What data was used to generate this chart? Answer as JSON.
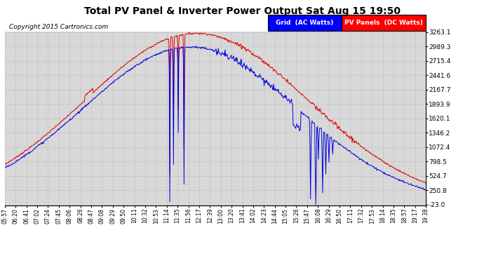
{
  "title": "Total PV Panel & Inverter Power Output Sat Aug 15 19:50",
  "copyright": "Copyright 2015 Cartronics.com",
  "legend_blue_label": "Grid  (AC Watts)",
  "legend_red_label": "PV Panels  (DC Watts)",
  "grid_color": "#bbbbbb",
  "bg_color": "#ffffff",
  "plot_bg_color": "#d8d8d8",
  "line_color_blue": "#0000dd",
  "line_color_red": "#dd0000",
  "ytick_values": [
    -23.0,
    250.8,
    524.7,
    798.5,
    1072.4,
    1346.2,
    1620.1,
    1893.9,
    2167.7,
    2441.6,
    2715.4,
    2989.3,
    3263.1
  ],
  "ymin": -23.0,
  "ymax": 3263.1,
  "x_labels": [
    "05:57",
    "06:20",
    "06:41",
    "07:02",
    "07:24",
    "07:45",
    "08:06",
    "08:26",
    "08:47",
    "09:08",
    "09:29",
    "09:50",
    "10:11",
    "10:32",
    "10:53",
    "11:14",
    "11:35",
    "11:56",
    "12:17",
    "12:39",
    "13:00",
    "13:20",
    "13:41",
    "14:02",
    "14:23",
    "14:44",
    "15:05",
    "15:26",
    "15:47",
    "16:08",
    "16:29",
    "16:50",
    "17:11",
    "17:32",
    "17:53",
    "18:14",
    "18:35",
    "18:57",
    "19:17",
    "19:38"
  ]
}
